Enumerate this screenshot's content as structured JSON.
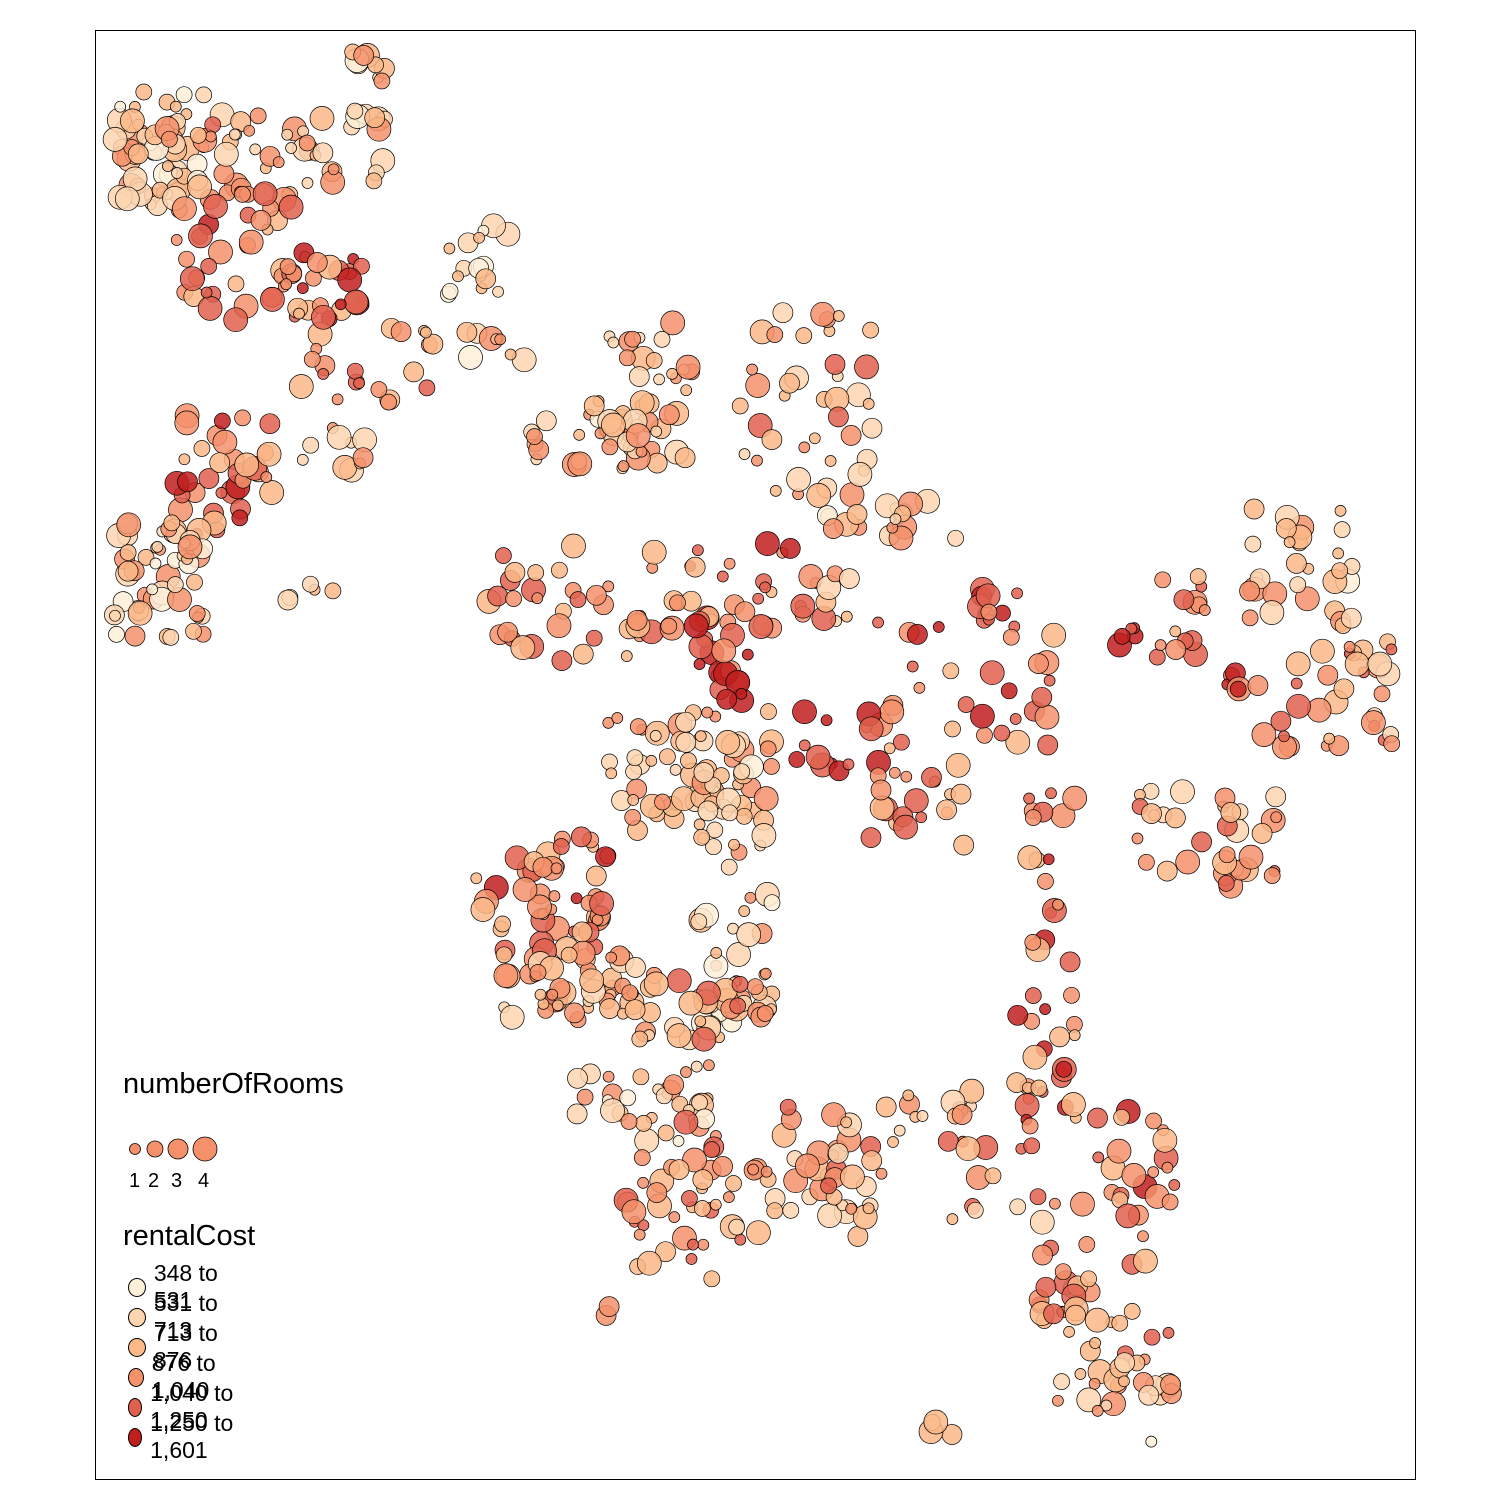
{
  "map": {
    "frame": true,
    "marker_opacity": 0.85
  },
  "legend_size": {
    "title": "numberOfRooms",
    "values": [
      "1",
      "2",
      "3",
      "4"
    ]
  },
  "legend_color": {
    "title": "rentalCost",
    "classes": [
      {
        "label": "348 to 531",
        "color": "#fef0d9"
      },
      {
        "label": "531 to 713",
        "color": "#fdd5b0"
      },
      {
        "label": "713 to 876",
        "color": "#fcb988"
      },
      {
        "label": "876 to 1,040",
        "color": "#f4916b"
      },
      {
        "label": "1,040 to 1,250",
        "color": "#e0604f"
      },
      {
        "label": "1,250 to 1,601",
        "color": "#c11e1e"
      }
    ]
  }
}
